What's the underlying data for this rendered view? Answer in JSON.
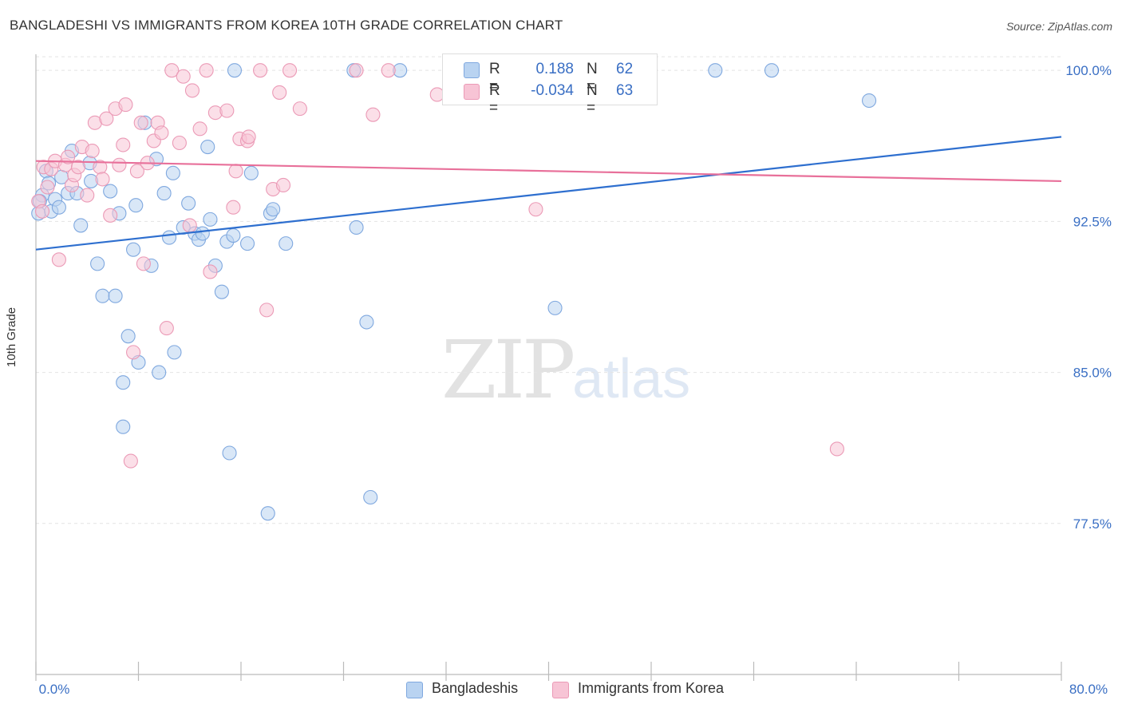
{
  "title": "BANGLADESHI VS IMMIGRANTS FROM KOREA 10TH GRADE CORRELATION CHART",
  "source": "Source: ZipAtlas.com",
  "watermark": {
    "zip": "ZIP",
    "atlas": "atlas"
  },
  "legend_top": {
    "rows": [
      {
        "r_label": "R =",
        "r_value": "0.188",
        "n_label": "N =",
        "n_value": "62"
      },
      {
        "r_label": "R =",
        "r_value": "-0.034",
        "n_label": "N =",
        "n_value": "63"
      }
    ]
  },
  "legend_bottom": [
    "Bangladeshis",
    "Immigrants from Korea"
  ],
  "colors": {
    "blue_fill": "#b9d3f1",
    "blue_stroke": "#7fa8df",
    "blue_line": "#2e6fcf",
    "pink_fill": "#f7c4d5",
    "pink_stroke": "#eb9ab6",
    "pink_line": "#e8709a",
    "tick_text": "#3a6fc4",
    "grid": "#e4e4e4",
    "axis": "#bbbbbb"
  },
  "chart_data": {
    "type": "scatter",
    "title": "BANGLADESHI VS IMMIGRANTS FROM KOREA 10TH GRADE CORRELATION CHART",
    "xlabel": "",
    "ylabel": "10th Grade",
    "xlim": [
      0,
      80
    ],
    "ylim": [
      70,
      100.8
    ],
    "x_tick_labels": [
      "0.0%",
      "80.0%"
    ],
    "y_ticks": [
      77.5,
      85.0,
      92.5,
      100.0
    ],
    "y_tick_labels": [
      "77.5%",
      "85.0%",
      "92.5%",
      "100.0%"
    ],
    "grid": true,
    "legend_position": "top-center",
    "series": [
      {
        "name": "Bangladeshis",
        "r": 0.188,
        "n": 62,
        "trend": {
          "x": [
            0,
            80
          ],
          "y": [
            91.1,
            96.7
          ]
        },
        "points": [
          [
            0.2,
            92.9
          ],
          [
            0.5,
            93.8
          ],
          [
            0.8,
            95.0
          ],
          [
            1.0,
            94.4
          ],
          [
            1.2,
            93.0
          ],
          [
            1.5,
            93.6
          ],
          [
            2.0,
            94.7
          ],
          [
            2.5,
            93.9
          ],
          [
            2.8,
            96.0
          ],
          [
            3.2,
            93.9
          ],
          [
            3.5,
            92.3
          ],
          [
            4.2,
            95.4
          ],
          [
            4.3,
            94.5
          ],
          [
            4.8,
            90.4
          ],
          [
            5.2,
            88.8
          ],
          [
            5.8,
            94.0
          ],
          [
            6.2,
            88.8
          ],
          [
            6.5,
            92.9
          ],
          [
            6.8,
            82.3
          ],
          [
            6.8,
            84.5
          ],
          [
            7.2,
            86.8
          ],
          [
            7.6,
            91.1
          ],
          [
            7.8,
            93.3
          ],
          [
            8.0,
            85.5
          ],
          [
            8.5,
            97.4
          ],
          [
            9.0,
            90.3
          ],
          [
            9.4,
            95.6
          ],
          [
            9.6,
            85.0
          ],
          [
            10.0,
            93.9
          ],
          [
            10.4,
            91.7
          ],
          [
            10.7,
            94.9
          ],
          [
            10.8,
            86.0
          ],
          [
            11.5,
            92.2
          ],
          [
            11.9,
            93.4
          ],
          [
            12.4,
            91.9
          ],
          [
            12.7,
            91.6
          ],
          [
            13.0,
            91.9
          ],
          [
            13.4,
            96.2
          ],
          [
            13.6,
            92.6
          ],
          [
            14.0,
            90.3
          ],
          [
            14.5,
            89.0
          ],
          [
            14.9,
            91.5
          ],
          [
            15.1,
            81.0
          ],
          [
            15.4,
            91.8
          ],
          [
            15.5,
            100.0
          ],
          [
            16.5,
            91.4
          ],
          [
            16.8,
            94.9
          ],
          [
            18.1,
            78.0
          ],
          [
            18.3,
            92.9
          ],
          [
            18.5,
            93.1
          ],
          [
            19.5,
            91.4
          ],
          [
            24.8,
            100.0
          ],
          [
            25.0,
            92.2
          ],
          [
            25.8,
            87.5
          ],
          [
            26.1,
            78.8
          ],
          [
            28.4,
            100.0
          ],
          [
            40.5,
            88.2
          ],
          [
            53.0,
            100.0
          ],
          [
            57.4,
            100.0
          ],
          [
            65.0,
            98.5
          ],
          [
            0.3,
            93.5
          ],
          [
            1.8,
            93.2
          ]
        ]
      },
      {
        "name": "Immigrants from Korea",
        "r": -0.034,
        "n": 63,
        "trend": {
          "x": [
            0,
            80
          ],
          "y": [
            95.5,
            94.5
          ]
        },
        "points": [
          [
            0.2,
            93.5
          ],
          [
            0.5,
            93.0
          ],
          [
            0.6,
            95.2
          ],
          [
            0.9,
            94.2
          ],
          [
            1.2,
            95.1
          ],
          [
            1.5,
            95.5
          ],
          [
            1.8,
            90.6
          ],
          [
            2.3,
            95.3
          ],
          [
            2.5,
            95.7
          ],
          [
            2.8,
            94.3
          ],
          [
            3.0,
            94.8
          ],
          [
            3.3,
            95.2
          ],
          [
            3.6,
            96.2
          ],
          [
            4.0,
            93.8
          ],
          [
            4.4,
            96.0
          ],
          [
            4.6,
            97.4
          ],
          [
            5.0,
            95.2
          ],
          [
            5.2,
            94.6
          ],
          [
            5.5,
            97.6
          ],
          [
            5.8,
            92.8
          ],
          [
            6.2,
            98.1
          ],
          [
            6.5,
            95.3
          ],
          [
            6.8,
            96.3
          ],
          [
            7.0,
            98.3
          ],
          [
            7.4,
            80.6
          ],
          [
            7.6,
            86.0
          ],
          [
            7.9,
            95.0
          ],
          [
            8.2,
            97.4
          ],
          [
            8.4,
            90.4
          ],
          [
            8.7,
            95.4
          ],
          [
            9.2,
            96.5
          ],
          [
            9.5,
            97.4
          ],
          [
            9.8,
            96.9
          ],
          [
            10.2,
            87.2
          ],
          [
            10.6,
            100.0
          ],
          [
            11.2,
            96.4
          ],
          [
            11.5,
            99.7
          ],
          [
            12.0,
            92.3
          ],
          [
            12.2,
            99.0
          ],
          [
            12.8,
            97.1
          ],
          [
            13.3,
            100.0
          ],
          [
            13.6,
            90.0
          ],
          [
            14.0,
            97.9
          ],
          [
            14.9,
            98.0
          ],
          [
            15.4,
            93.2
          ],
          [
            15.6,
            95.0
          ],
          [
            15.9,
            96.6
          ],
          [
            16.5,
            96.5
          ],
          [
            16.6,
            96.7
          ],
          [
            17.5,
            100.0
          ],
          [
            18.0,
            88.1
          ],
          [
            18.5,
            94.1
          ],
          [
            19.0,
            98.9
          ],
          [
            19.3,
            94.3
          ],
          [
            19.8,
            100.0
          ],
          [
            20.6,
            98.1
          ],
          [
            25.0,
            100.0
          ],
          [
            26.3,
            97.8
          ],
          [
            27.5,
            100.0
          ],
          [
            31.3,
            98.8
          ],
          [
            39.0,
            93.1
          ],
          [
            62.5,
            81.2
          ],
          [
            41.0,
            100.0
          ]
        ]
      }
    ]
  }
}
